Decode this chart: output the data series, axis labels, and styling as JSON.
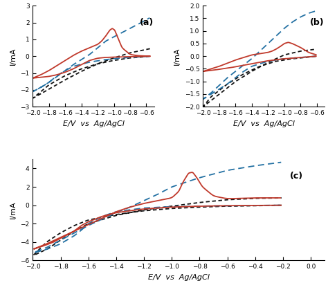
{
  "subplot_a": {
    "label": "(a)",
    "xlim": [
      -2.0,
      -0.5
    ],
    "ylim": [
      -3.0,
      3.0
    ],
    "xticks": [
      -2.0,
      -1.8,
      -1.6,
      -1.4,
      -1.2,
      -1.0,
      -0.8,
      -0.6
    ],
    "yticks": [
      -3.0,
      -2.0,
      -1.0,
      0.0,
      1.0,
      2.0,
      3.0
    ],
    "xlabel": "E/V  vs  Ag/AgCl",
    "ylabel": "I/mA",
    "red_cat_e": [
      -0.55,
      -0.7,
      -0.9,
      -1.1,
      -1.2,
      -1.3,
      -1.4,
      -1.5,
      -1.6,
      -1.7,
      -1.8,
      -1.9,
      -2.0
    ],
    "red_cat_i": [
      0.0,
      -0.02,
      -0.04,
      -0.07,
      -0.12,
      -0.25,
      -0.5,
      -0.75,
      -0.95,
      -1.1,
      -1.2,
      -1.25,
      -1.3
    ],
    "red_an_e": [
      -2.0,
      -1.9,
      -1.8,
      -1.7,
      -1.6,
      -1.5,
      -1.4,
      -1.3,
      -1.2,
      -1.15,
      -1.1,
      -1.05,
      -1.02,
      -0.99,
      -0.96,
      -0.9,
      -0.8,
      -0.7,
      -0.6,
      -0.55
    ],
    "red_an_i": [
      -1.3,
      -1.1,
      -0.85,
      -0.55,
      -0.25,
      0.05,
      0.3,
      0.5,
      0.7,
      0.9,
      1.2,
      1.55,
      1.65,
      1.55,
      1.2,
      0.5,
      0.1,
      0.03,
      0.01,
      0.0
    ],
    "blue_cat_e": [
      -0.55,
      -0.7,
      -0.9,
      -1.1,
      -1.3,
      -1.5,
      -1.6,
      -1.7,
      -1.75,
      -1.8,
      -1.85,
      -1.9,
      -2.0
    ],
    "blue_cat_i": [
      0.0,
      -0.05,
      -0.1,
      -0.2,
      -0.35,
      -0.6,
      -0.85,
      -1.15,
      -1.35,
      -1.55,
      -1.7,
      -1.85,
      -2.1
    ],
    "blue_an_e": [
      -2.0,
      -1.9,
      -1.8,
      -1.7,
      -1.6,
      -1.5,
      -1.4,
      -1.3,
      -1.2,
      -1.1,
      -0.9,
      -0.7,
      -0.55
    ],
    "blue_an_i": [
      -2.1,
      -1.85,
      -1.55,
      -1.2,
      -0.85,
      -0.5,
      -0.2,
      0.1,
      0.5,
      0.9,
      1.4,
      1.9,
      2.3
    ],
    "black_cat_e": [
      -0.55,
      -0.8,
      -1.0,
      -1.2,
      -1.4,
      -1.6,
      -1.8,
      -2.0
    ],
    "black_cat_i": [
      0.0,
      -0.1,
      -0.25,
      -0.45,
      -0.75,
      -1.15,
      -1.7,
      -2.5
    ],
    "black_an_e": [
      -2.0,
      -1.8,
      -1.6,
      -1.4,
      -1.2,
      -1.0,
      -0.8,
      -0.6,
      -0.55
    ],
    "black_an_i": [
      -2.5,
      -1.95,
      -1.4,
      -0.9,
      -0.45,
      -0.1,
      0.2,
      0.4,
      0.45
    ]
  },
  "subplot_b": {
    "label": "(b)",
    "xlim": [
      -2.0,
      -0.5
    ],
    "ylim": [
      -2.0,
      2.0
    ],
    "xticks": [
      -2.0,
      -1.8,
      -1.6,
      -1.4,
      -1.2,
      -1.0,
      -0.8,
      -0.6
    ],
    "yticks": [
      -2.0,
      -1.5,
      -1.0,
      -0.5,
      0.0,
      0.5,
      1.0,
      1.5,
      2.0
    ],
    "xlabel": "E/V  vs  Ag/AgCl",
    "ylabel": "I/mA",
    "red_cat_e": [
      -0.6,
      -0.8,
      -1.0,
      -1.2,
      -1.4,
      -1.6,
      -1.8,
      -2.0
    ],
    "red_cat_i": [
      0.0,
      -0.05,
      -0.1,
      -0.18,
      -0.3,
      -0.42,
      -0.52,
      -0.6
    ],
    "red_an_e": [
      -2.0,
      -1.8,
      -1.6,
      -1.4,
      -1.3,
      -1.2,
      -1.15,
      -1.1,
      -1.05,
      -1.0,
      -0.95,
      -0.9,
      -0.8,
      -0.7,
      -0.6
    ],
    "red_an_i": [
      -0.6,
      -0.4,
      -0.15,
      0.05,
      0.1,
      0.15,
      0.2,
      0.28,
      0.38,
      0.5,
      0.55,
      0.5,
      0.35,
      0.15,
      0.05
    ],
    "blue_cat_e": [
      -0.6,
      -0.8,
      -1.0,
      -1.2,
      -1.4,
      -1.5,
      -1.6,
      -1.7,
      -1.8,
      -1.9,
      -2.0
    ],
    "blue_cat_i": [
      0.0,
      -0.05,
      -0.1,
      -0.2,
      -0.4,
      -0.6,
      -0.85,
      -1.1,
      -1.3,
      -1.5,
      -1.7
    ],
    "blue_an_e": [
      -2.0,
      -1.9,
      -1.8,
      -1.7,
      -1.6,
      -1.5,
      -1.4,
      -1.3,
      -1.2,
      -1.1,
      -1.0,
      -0.9,
      -0.8,
      -0.7,
      -0.6
    ],
    "blue_an_i": [
      -1.7,
      -1.45,
      -1.15,
      -0.85,
      -0.6,
      -0.35,
      -0.1,
      0.2,
      0.5,
      0.8,
      1.1,
      1.35,
      1.55,
      1.7,
      1.8
    ],
    "black_cat_e": [
      -0.6,
      -0.9,
      -1.1,
      -1.3,
      -1.5,
      -1.7,
      -1.9,
      -2.0
    ],
    "black_cat_i": [
      0.0,
      -0.1,
      -0.2,
      -0.4,
      -0.7,
      -1.1,
      -1.6,
      -2.0
    ],
    "black_an_e": [
      -2.0,
      -1.8,
      -1.6,
      -1.4,
      -1.2,
      -1.0,
      -0.8,
      -0.6
    ],
    "black_an_i": [
      -2.0,
      -1.5,
      -1.0,
      -0.6,
      -0.25,
      0.05,
      0.2,
      0.28
    ]
  },
  "subplot_c": {
    "label": "(c)",
    "xlim": [
      -2.0,
      0.1
    ],
    "ylim": [
      -6.0,
      5.0
    ],
    "xticks": [
      -2.0,
      -1.8,
      -1.6,
      -1.4,
      -1.2,
      -1.0,
      -0.8,
      -0.6,
      -0.4,
      -0.2,
      0.0
    ],
    "yticks": [
      -6.0,
      -4.0,
      -2.0,
      0.0,
      2.0,
      4.0
    ],
    "xlabel": "E/V  vs  Ag/AgCl",
    "ylabel": "I/mA",
    "red_cat_e": [
      -0.2,
      -0.4,
      -0.6,
      -0.8,
      -1.0,
      -1.2,
      -1.4,
      -1.5,
      -1.6,
      -1.65,
      -1.7,
      -1.75,
      -1.8,
      -1.85,
      -1.9,
      -2.0
    ],
    "red_cat_i": [
      0.0,
      -0.02,
      -0.05,
      -0.1,
      -0.2,
      -0.4,
      -0.8,
      -1.2,
      -1.8,
      -2.2,
      -2.8,
      -3.2,
      -3.6,
      -4.0,
      -4.3,
      -4.8
    ],
    "red_an_e": [
      -2.0,
      -1.9,
      -1.8,
      -1.7,
      -1.6,
      -1.5,
      -1.4,
      -1.3,
      -1.2,
      -1.1,
      -1.0,
      -0.95,
      -0.92,
      -0.88,
      -0.85,
      -0.82,
      -0.78,
      -0.7,
      -0.6,
      -0.4,
      -0.2
    ],
    "red_an_i": [
      -4.8,
      -4.2,
      -3.5,
      -2.8,
      -2.1,
      -1.4,
      -0.7,
      -0.2,
      0.2,
      0.5,
      0.8,
      1.5,
      2.5,
      3.5,
      3.6,
      3.0,
      2.0,
      1.0,
      0.7,
      0.8,
      0.8
    ],
    "blue_cat_e": [
      -0.2,
      -0.6,
      -1.0,
      -1.2,
      -1.4,
      -1.5,
      -1.6,
      -1.65,
      -1.7,
      -1.8,
      -1.9,
      -2.0
    ],
    "blue_cat_i": [
      0.0,
      -0.05,
      -0.15,
      -0.3,
      -0.7,
      -1.2,
      -2.0,
      -2.7,
      -3.3,
      -4.2,
      -4.8,
      -5.2
    ],
    "blue_an_e": [
      -2.0,
      -1.9,
      -1.8,
      -1.7,
      -1.6,
      -1.5,
      -1.4,
      -1.3,
      -1.2,
      -1.1,
      -1.0,
      -0.8,
      -0.6,
      -0.4,
      -0.2
    ],
    "blue_an_i": [
      -5.2,
      -4.6,
      -3.8,
      -3.0,
      -2.2,
      -1.5,
      -0.8,
      -0.2,
      0.5,
      1.2,
      2.0,
      3.0,
      3.8,
      4.3,
      4.7
    ],
    "black_cat_e": [
      -0.2,
      -0.4,
      -0.6,
      -0.8,
      -1.0,
      -1.2,
      -1.4,
      -1.6,
      -1.7,
      -1.8,
      -1.9,
      -2.0
    ],
    "black_cat_i": [
      0.0,
      -0.05,
      -0.1,
      -0.2,
      -0.35,
      -0.6,
      -1.0,
      -1.6,
      -2.2,
      -3.0,
      -4.0,
      -5.5
    ],
    "black_an_e": [
      -2.0,
      -1.9,
      -1.8,
      -1.7,
      -1.6,
      -1.4,
      -1.2,
      -1.0,
      -0.8,
      -0.6,
      -0.4,
      -0.2
    ],
    "black_an_i": [
      -5.5,
      -4.8,
      -3.8,
      -2.8,
      -2.0,
      -1.1,
      -0.5,
      -0.1,
      0.3,
      0.6,
      0.75,
      0.8
    ]
  },
  "colors": {
    "red": "#c0392b",
    "blue": "#2471a3",
    "black": "#111111"
  },
  "lw": 1.3,
  "font_size_label": 8,
  "font_size_tick": 6.5,
  "font_size_annot": 9
}
